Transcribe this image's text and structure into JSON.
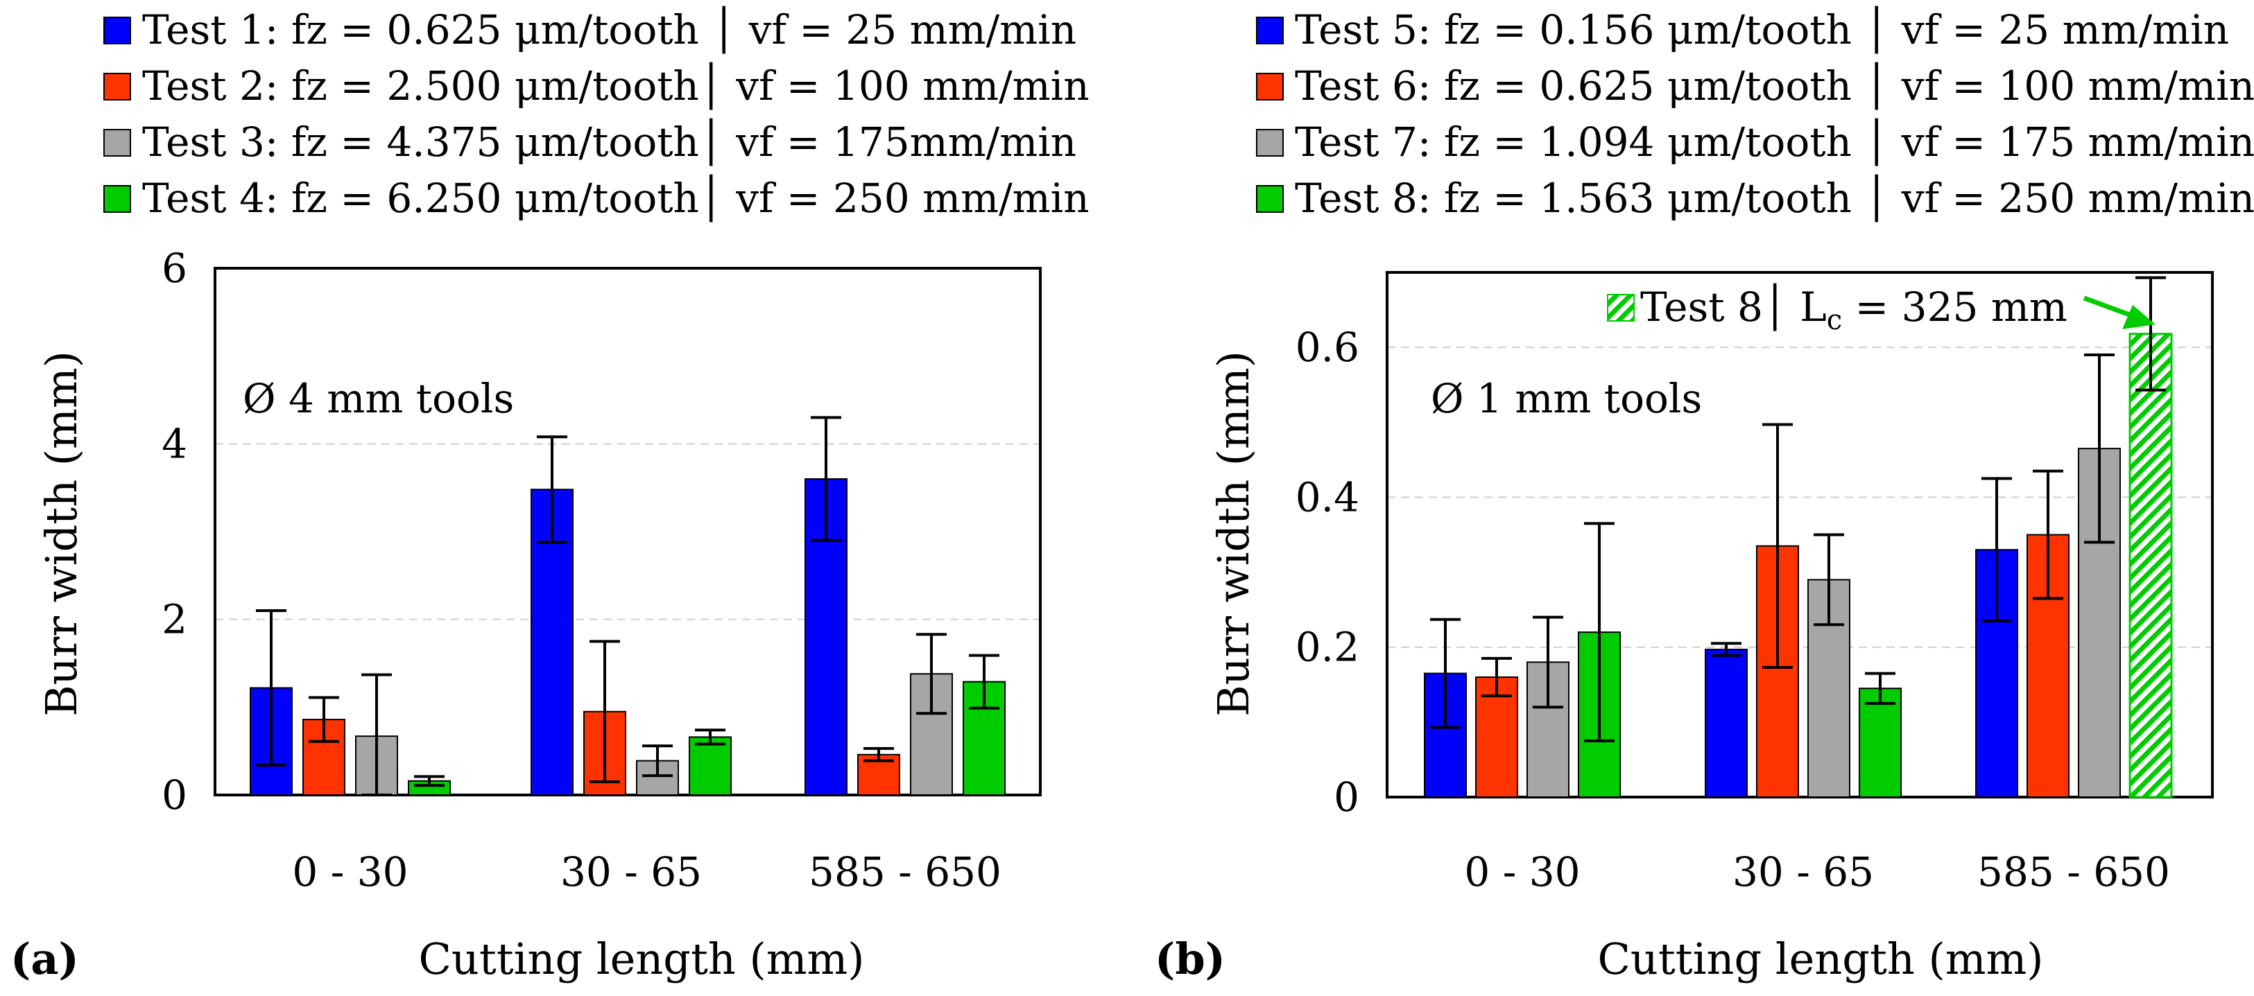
{
  "chart_data": [
    {
      "type": "bar",
      "panel_label": "(a)",
      "annotation": "Ø 4 mm tools",
      "xlabel": "Cutting length (mm)",
      "ylabel": "Burr width (mm)",
      "ylim": [
        0,
        6
      ],
      "yticks": [
        "0",
        "2",
        "4",
        "6"
      ],
      "ytick_values": [
        0,
        2,
        4,
        6
      ],
      "grid": "horizontal dashed",
      "legend_position": "top",
      "categories": [
        "0 - 30",
        "30 - 65",
        "585 - 650"
      ],
      "series": [
        {
          "name": "Test 1: fz = 0.625 μm/tooth │ vf = 25 mm/min",
          "color": "#0000FF",
          "values": [
            1.22,
            3.48,
            3.6
          ],
          "errors": [
            0.88,
            0.6,
            0.7
          ]
        },
        {
          "name": "Test 2: fz = 2.500 μm/tooth│ vf = 100 mm/min",
          "color": "#FF3300",
          "values": [
            0.86,
            0.95,
            0.46
          ],
          "errors": [
            0.25,
            0.8,
            0.07
          ]
        },
        {
          "name": "Test 3: fz = 4.375 μm/tooth│ vf = 175mm/min",
          "color": "#A6A6A6",
          "values": [
            0.67,
            0.39,
            1.38
          ],
          "errors": [
            0.7,
            0.17,
            0.45
          ]
        },
        {
          "name": "Test 4: fz = 6.250 μm/tooth│ vf = 250 mm/min",
          "color": "#00CC00",
          "values": [
            0.16,
            0.66,
            1.29
          ],
          "errors": [
            0.05,
            0.08,
            0.3
          ]
        }
      ]
    },
    {
      "type": "bar",
      "panel_label": "(b)",
      "annotation": "Ø 1 mm tools",
      "xlabel": "Cutting length (mm)",
      "ylabel": "Burr width (mm)",
      "ylim": [
        0,
        0.7
      ],
      "yticks": [
        "0",
        "0.2",
        "0.4",
        "0.6"
      ],
      "ytick_values": [
        0,
        0.2,
        0.4,
        0.6
      ],
      "grid": "horizontal dashed",
      "legend_position": "top",
      "categories": [
        "0 - 30",
        "30 - 65",
        "585 - 650"
      ],
      "series": [
        {
          "name": "Test 5: fz = 0.156 μm/tooth │ vf = 25 mm/min",
          "color": "#0000FF",
          "values": [
            0.165,
            0.197,
            0.33
          ],
          "errors": [
            0.072,
            0.008,
            0.095
          ]
        },
        {
          "name": "Test 6: fz = 0.625 μm/tooth │ vf = 100 mm/min",
          "color": "#FF3300",
          "values": [
            0.16,
            0.335,
            0.35
          ],
          "errors": [
            0.025,
            0.162,
            0.085
          ]
        },
        {
          "name": "Test 7: fz = 1.094 μm/tooth │ vf = 175 mm/min",
          "color": "#A6A6A6",
          "values": [
            0.18,
            0.29,
            0.465
          ],
          "errors": [
            0.06,
            0.06,
            0.125
          ]
        },
        {
          "name": "Test 8: fz = 1.563 μm/tooth │ vf = 250 mm/min",
          "color": "#00CC00",
          "values": [
            0.22,
            0.145,
            0.618
          ],
          "errors": [
            0.145,
            0.02,
            0.075
          ],
          "hatched_last": true
        }
      ],
      "highlight_label": {
        "prefix": "Test 8│ L",
        "subscript": "c",
        "suffix": " = 325 mm"
      }
    }
  ]
}
